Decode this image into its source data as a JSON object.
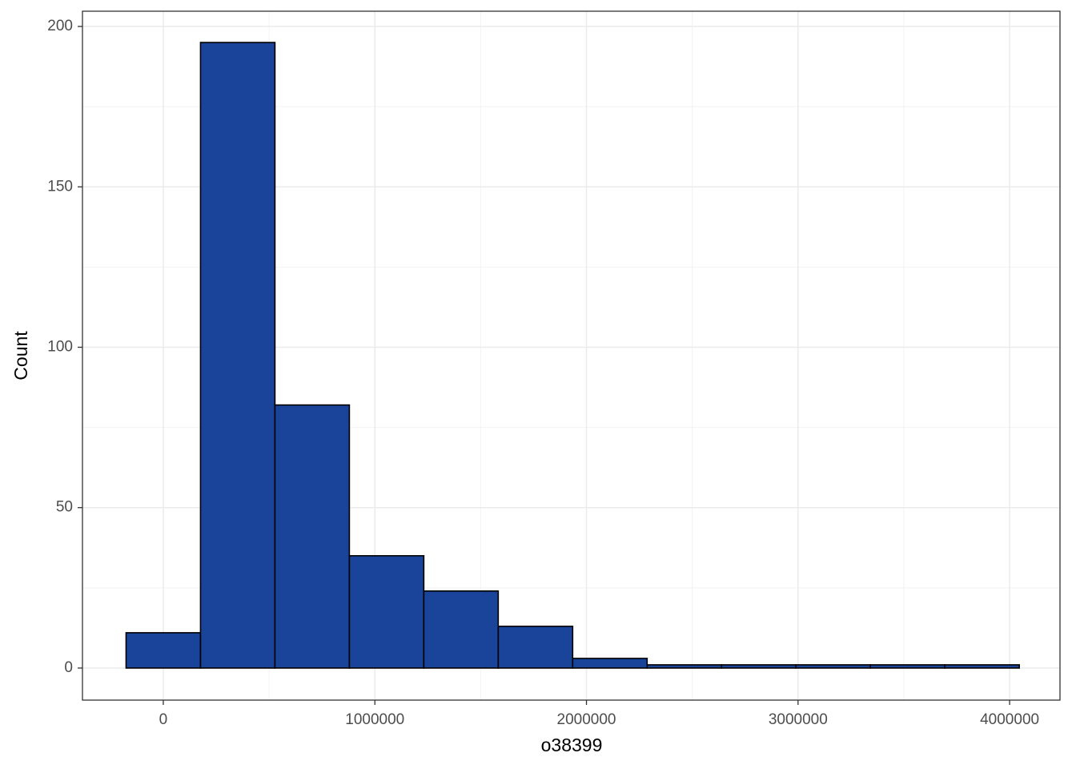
{
  "chart_data": {
    "type": "histogram",
    "x_label": "o38399",
    "y_label": "Count",
    "bins": [
      -175900,
      175900,
      527700,
      879500,
      1231300,
      1583100,
      1934900,
      2286700,
      2638500,
      2990300,
      3342100,
      3693900,
      4045700
    ],
    "counts": [
      11,
      195,
      82,
      35,
      24,
      13,
      3,
      1,
      1,
      1,
      1,
      1
    ],
    "color": "#19449a",
    "edge_color": "#000000",
    "xlim": [
      -382000,
      4238000
    ],
    "ylim": [
      -10,
      204.75
    ],
    "xticks": [
      0,
      1000000,
      2000000,
      3000000,
      4000000
    ],
    "yticks": [
      0,
      50,
      100,
      150,
      200
    ],
    "x_minor_ticks": [
      500000,
      1500000,
      2500000,
      3500000
    ],
    "y_minor_ticks": [
      25,
      75,
      125,
      175
    ],
    "grid": true
  }
}
